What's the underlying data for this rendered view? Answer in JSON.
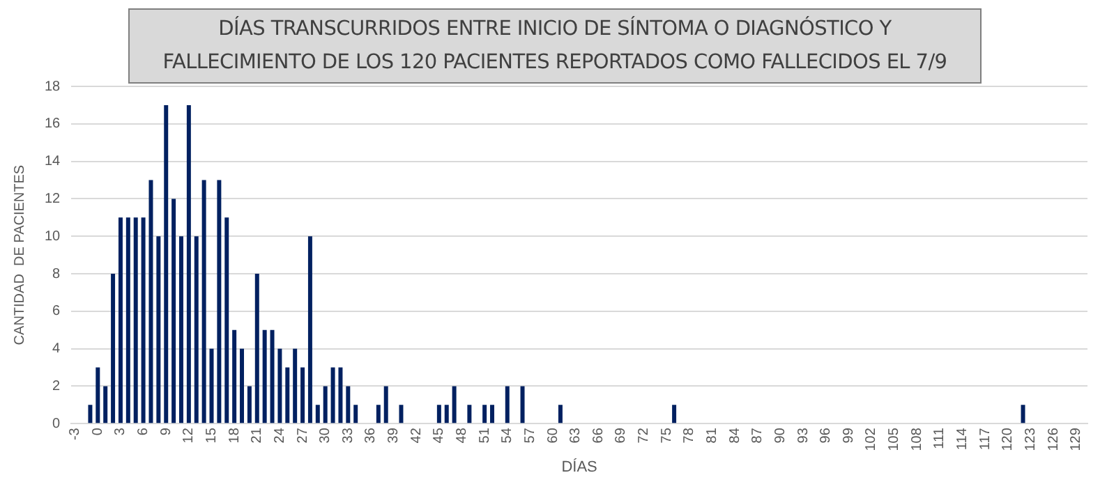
{
  "chart_data": {
    "type": "bar",
    "title": "DÍAS TRANSCURRIDOS ENTRE INICIO DE SÍNTOMA O DIAGNÓSTICO Y\nFALLECIMIENTO DE LOS 120 PACIENTES REPORTADOS COMO FALLECIDOS EL 7/9",
    "xlabel": "DÍAS",
    "ylabel": "CANTIDAD  DE PACIENTES",
    "categories": [
      "-3",
      null,
      null,
      "0",
      null,
      null,
      "3",
      null,
      null,
      "6",
      null,
      null,
      "9",
      null,
      null,
      "12",
      null,
      null,
      "15",
      null,
      null,
      "18",
      null,
      null,
      "21",
      null,
      null,
      "24",
      null,
      null,
      "27",
      null,
      null,
      "30",
      null,
      null,
      "33",
      null,
      null,
      "36",
      null,
      null,
      "39",
      null,
      null,
      "42",
      null,
      null,
      "45",
      null,
      null,
      "48",
      null,
      null,
      "51",
      null,
      null,
      "54",
      null,
      null,
      "57",
      null,
      null,
      "60",
      null,
      null,
      "63",
      null,
      null,
      "66",
      null,
      null,
      "69",
      null,
      null,
      "72",
      null,
      null,
      "75",
      null,
      null,
      "78",
      null,
      null,
      "81",
      null,
      null,
      "84",
      null,
      null,
      "87",
      null,
      null,
      "90",
      null,
      null,
      "93",
      null,
      null,
      "96",
      null,
      null,
      "99",
      null,
      null,
      "102",
      null,
      null,
      "105",
      null,
      null,
      "108",
      null,
      null,
      "111",
      null,
      null,
      "114",
      null,
      null,
      "117",
      null,
      null,
      "120",
      null,
      null,
      "123",
      null,
      null,
      "126",
      null,
      null,
      "129",
      null
    ],
    "values": [
      0,
      0,
      1,
      3,
      2,
      8,
      11,
      11,
      11,
      11,
      13,
      10,
      17,
      12,
      10,
      17,
      10,
      13,
      4,
      13,
      11,
      5,
      4,
      2,
      8,
      5,
      5,
      4,
      3,
      4,
      3,
      10,
      1,
      2,
      3,
      3,
      2,
      1,
      0,
      0,
      1,
      2,
      0,
      1,
      0,
      0,
      0,
      0,
      1,
      1,
      2,
      0,
      1,
      0,
      1,
      1,
      0,
      2,
      0,
      2,
      0,
      0,
      0,
      0,
      1,
      0,
      0,
      0,
      0,
      0,
      0,
      0,
      0,
      0,
      0,
      0,
      0,
      0,
      0,
      1,
      0,
      0,
      0,
      0,
      0,
      0,
      0,
      0,
      0,
      0,
      0,
      0,
      0,
      0,
      0,
      0,
      0,
      0,
      0,
      0,
      0,
      0,
      0,
      0,
      0,
      0,
      0,
      0,
      0,
      0,
      0,
      0,
      0,
      0,
      0,
      0,
      0,
      0,
      0,
      0,
      0,
      0,
      0,
      0,
      0,
      1,
      0,
      0,
      0,
      0,
      0,
      0,
      0,
      0
    ],
    "color": "#002060",
    "ylim": [
      0,
      18
    ],
    "yticks": [
      0,
      2,
      4,
      6,
      8,
      10,
      12,
      14,
      16,
      18
    ],
    "grid": "y"
  }
}
